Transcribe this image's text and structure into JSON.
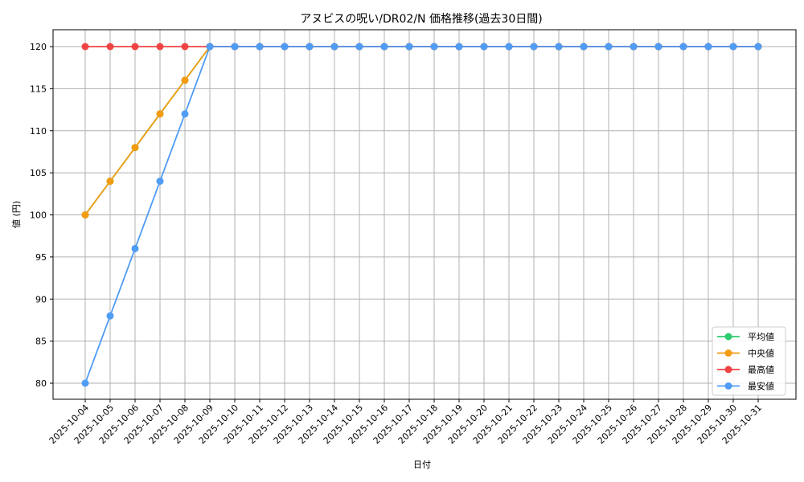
{
  "chart_data": {
    "type": "line",
    "title": "アヌビスの呪い/DR02/N 価格推移(過去30日間)",
    "xlabel": "日付",
    "ylabel": "値 (円)",
    "ylim": [
      78,
      122
    ],
    "yticks": [
      80,
      85,
      90,
      95,
      100,
      105,
      110,
      115,
      120
    ],
    "grid": true,
    "legend_position": "lower right",
    "categories": [
      "2025-10-04",
      "2025-10-05",
      "2025-10-06",
      "2025-10-07",
      "2025-10-08",
      "2025-10-09",
      "2025-10-10",
      "2025-10-11",
      "2025-10-12",
      "2025-10-13",
      "2025-10-14",
      "2025-10-15",
      "2025-10-16",
      "2025-10-17",
      "2025-10-18",
      "2025-10-19",
      "2025-10-20",
      "2025-10-21",
      "2025-10-22",
      "2025-10-23",
      "2025-10-24",
      "2025-10-25",
      "2025-10-26",
      "2025-10-27",
      "2025-10-28",
      "2025-10-29",
      "2025-10-30",
      "2025-10-31"
    ],
    "series": [
      {
        "name": "平均値",
        "color": "#2ecc71",
        "values": [
          100,
          104,
          108,
          112,
          116,
          120,
          120,
          120,
          120,
          120,
          120,
          120,
          120,
          120,
          120,
          120,
          120,
          120,
          120,
          120,
          120,
          120,
          120,
          120,
          120,
          120,
          120,
          120
        ]
      },
      {
        "name": "中央値",
        "color": "#f39c12",
        "values": [
          100,
          104,
          108,
          112,
          116,
          120,
          120,
          120,
          120,
          120,
          120,
          120,
          120,
          120,
          120,
          120,
          120,
          120,
          120,
          120,
          120,
          120,
          120,
          120,
          120,
          120,
          120,
          120
        ]
      },
      {
        "name": "最高値",
        "color": "#ef4444",
        "values": [
          120,
          120,
          120,
          120,
          120,
          120,
          120,
          120,
          120,
          120,
          120,
          120,
          120,
          120,
          120,
          120,
          120,
          120,
          120,
          120,
          120,
          120,
          120,
          120,
          120,
          120,
          120,
          120
        ]
      },
      {
        "name": "最安値",
        "color": "#4f9cf5",
        "values": [
          80,
          88,
          96,
          104,
          112,
          120,
          120,
          120,
          120,
          120,
          120,
          120,
          120,
          120,
          120,
          120,
          120,
          120,
          120,
          120,
          120,
          120,
          120,
          120,
          120,
          120,
          120,
          120
        ]
      }
    ]
  }
}
